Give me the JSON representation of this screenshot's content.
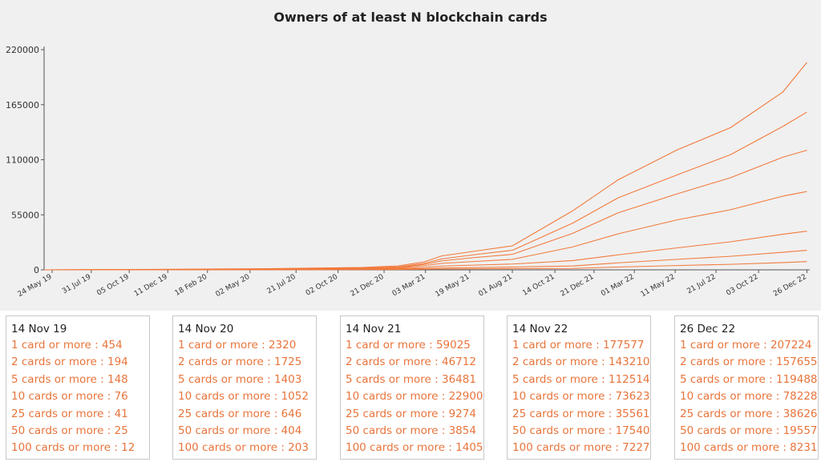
{
  "colors": {
    "line": "#f27a3c",
    "text_accent": "#e8743b",
    "plot_bg": "#f0f0f0"
  },
  "chart_data": {
    "type": "line",
    "title": "Owners of at least N blockchain cards",
    "xlabel": "",
    "ylabel": "",
    "ylim": [
      0,
      220000
    ],
    "yticks": [
      "0",
      "55000",
      "110000",
      "165000",
      "220000"
    ],
    "xlim": [
      "2019-05-10",
      "2022-12-31"
    ],
    "xticks": [
      {
        "date": "2019-05-24",
        "label": "24 May 19"
      },
      {
        "date": "2019-07-31",
        "label": "31 Jul 19"
      },
      {
        "date": "2019-10-05",
        "label": "05 Oct 19"
      },
      {
        "date": "2019-12-11",
        "label": "11 Dec 19"
      },
      {
        "date": "2020-02-18",
        "label": "18 Feb 20"
      },
      {
        "date": "2020-05-02",
        "label": "02 May 20"
      },
      {
        "date": "2020-07-21",
        "label": "21 Jul 20"
      },
      {
        "date": "2020-10-02",
        "label": "02 Oct 20"
      },
      {
        "date": "2020-12-21",
        "label": "21 Dec 20"
      },
      {
        "date": "2021-03-03",
        "label": "03 Mar 21"
      },
      {
        "date": "2021-05-19",
        "label": "19 May 21"
      },
      {
        "date": "2021-08-01",
        "label": "01 Aug 21"
      },
      {
        "date": "2021-10-14",
        "label": "14 Oct 21"
      },
      {
        "date": "2021-12-21",
        "label": "21 Dec 21"
      },
      {
        "date": "2022-03-01",
        "label": "01 Mar 22"
      },
      {
        "date": "2022-05-11",
        "label": "11 May 22"
      },
      {
        "date": "2022-07-21",
        "label": "21 Jul 22"
      },
      {
        "date": "2022-10-03",
        "label": "03 Oct 22"
      },
      {
        "date": "2022-12-26",
        "label": "26 Dec 22"
      }
    ],
    "x": [
      "2019-05-10",
      "2019-11-14",
      "2020-06-01",
      "2020-11-14",
      "2021-01-15",
      "2021-03-01",
      "2021-04-01",
      "2021-06-01",
      "2021-08-01",
      "2021-11-14",
      "2022-02-01",
      "2022-05-15",
      "2022-08-15",
      "2022-11-14",
      "2022-12-26"
    ],
    "series": [
      {
        "values": [
          0,
          454,
          1200,
          2320,
          4000,
          8000,
          14000,
          19000,
          24000,
          59025,
          90000,
          120000,
          142000,
          177577,
          207224
        ]
      },
      {
        "values": [
          0,
          194,
          900,
          1725,
          3000,
          6500,
          11000,
          15500,
          19500,
          46712,
          72000,
          95000,
          115000,
          143210,
          157655
        ]
      },
      {
        "values": [
          0,
          148,
          700,
          1403,
          2400,
          5500,
          9000,
          12500,
          15500,
          36481,
          57000,
          76000,
          92000,
          112514,
          119488
        ]
      },
      {
        "values": [
          0,
          76,
          500,
          1052,
          1800,
          4200,
          6500,
          8500,
          10500,
          22900,
          36000,
          50000,
          60000,
          73623,
          78228
        ]
      },
      {
        "values": [
          0,
          41,
          300,
          646,
          1100,
          2500,
          3800,
          4800,
          5800,
          9274,
          15000,
          22000,
          28000,
          35561,
          38626
        ]
      },
      {
        "values": [
          0,
          25,
          200,
          404,
          700,
          1300,
          1900,
          2300,
          2800,
          3854,
          7000,
          10500,
          13500,
          17540,
          19557
        ]
      },
      {
        "values": [
          0,
          12,
          100,
          203,
          350,
          600,
          800,
          1000,
          1200,
          1405,
          2800,
          4300,
          5500,
          7227,
          8231
        ]
      }
    ]
  },
  "panels": [
    {
      "date": "14 Nov 19",
      "rows": [
        "1 card or more : 454",
        "2 cards or more : 194",
        "5 cards or more : 148",
        "10 cards or more : 76",
        "25 cards or more : 41",
        "50 cards or more : 25",
        "100 cards or more : 12"
      ]
    },
    {
      "date": "14 Nov 20",
      "rows": [
        "1 card or more : 2320",
        "2 cards or more : 1725",
        "5 cards or more : 1403",
        "10 cards or more : 1052",
        "25 cards or more : 646",
        "50 cards or more : 404",
        "100 cards or more : 203"
      ]
    },
    {
      "date": "14 Nov 21",
      "rows": [
        "1 card or more : 59025",
        "2 cards or more : 46712",
        "5 cards or more : 36481",
        "10 cards or more : 22900",
        "25 cards or more : 9274",
        "50 cards or more : 3854",
        "100 cards or more : 1405"
      ]
    },
    {
      "date": "14 Nov 22",
      "rows": [
        "1 card or more : 177577",
        "2 cards or more : 143210",
        "5 cards or more : 112514",
        "10 cards or more : 73623",
        "25 cards or more : 35561",
        "50 cards or more : 17540",
        "100 cards or more : 7227"
      ]
    },
    {
      "date": "26 Dec 22",
      "rows": [
        "1 card or more : 207224",
        "2 cards or more : 157655",
        "5 cards or more : 119488",
        "10 cards or more : 78228",
        "25 cards or more : 38626",
        "50 cards or more : 19557",
        "100 cards or more : 8231"
      ]
    }
  ]
}
